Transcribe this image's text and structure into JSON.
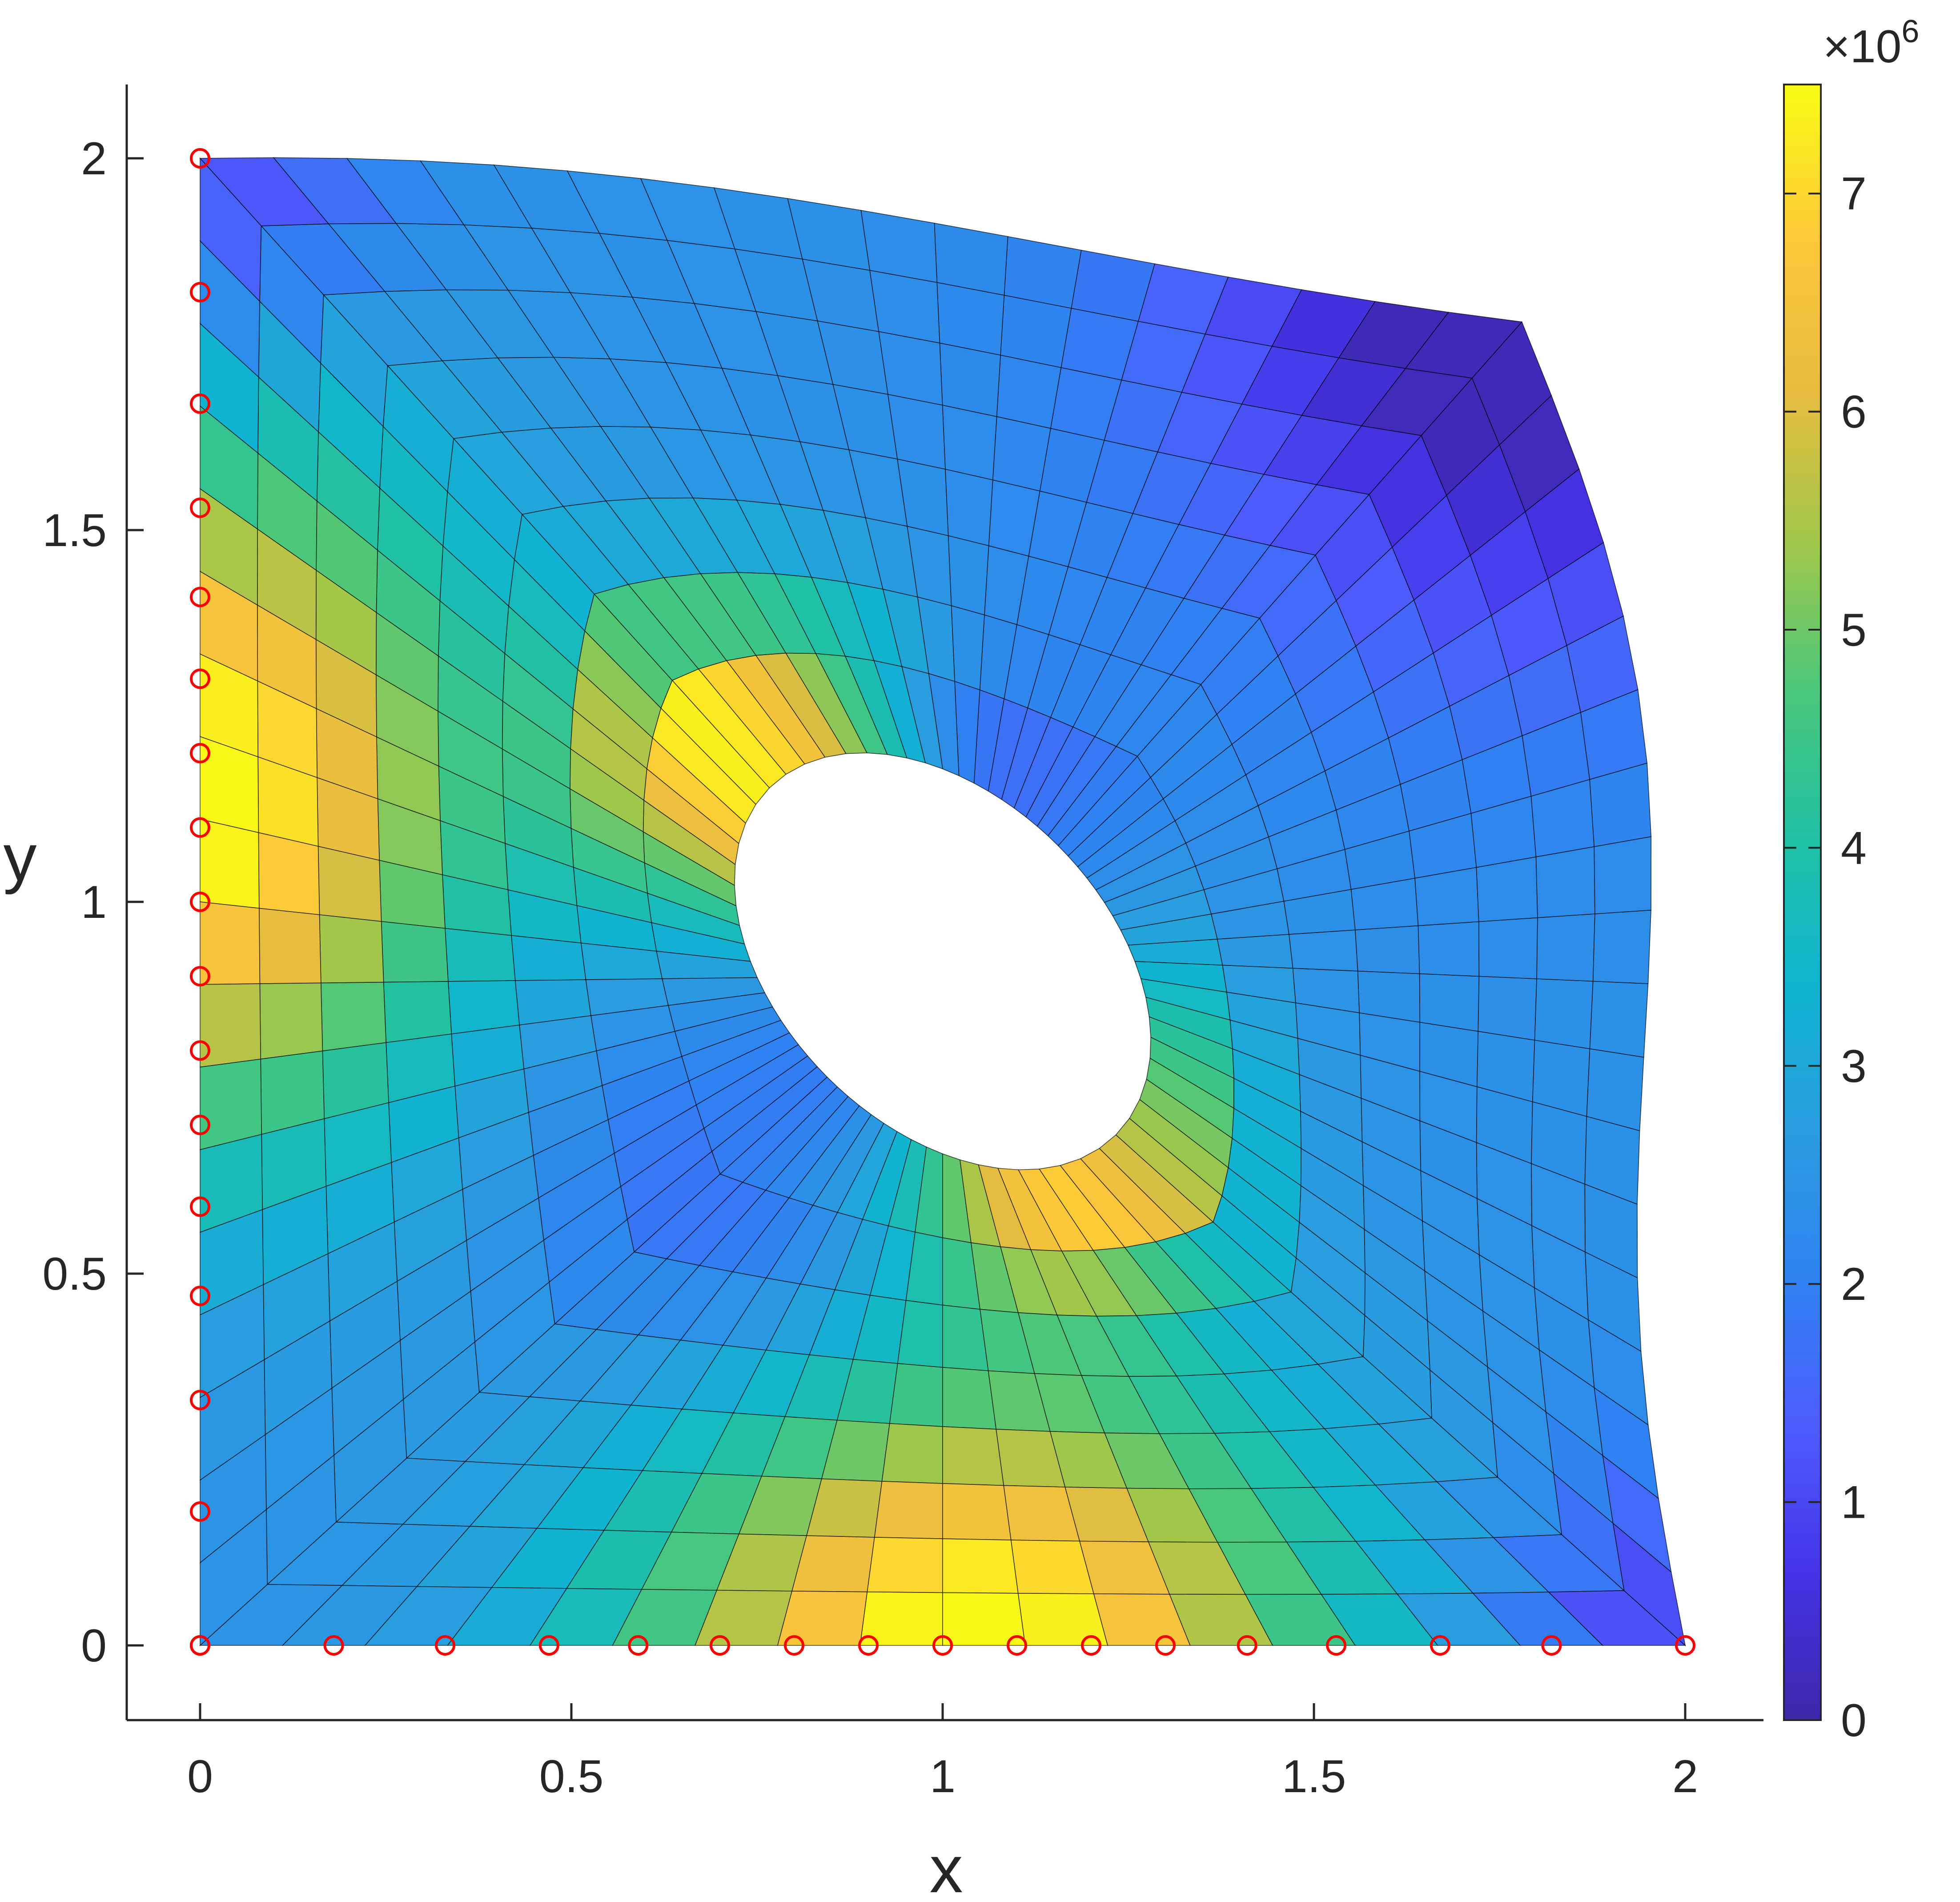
{
  "chart_data": {
    "type": "heatmap",
    "title": "",
    "xlabel": "x",
    "ylabel": "y",
    "xlim": [
      -0.1,
      2.1
    ],
    "ylim": [
      -0.1,
      2.1
    ],
    "xticks": [
      0,
      0.5,
      1,
      1.5,
      2
    ],
    "yticks": [
      0,
      0.5,
      1,
      1.5,
      2
    ],
    "xtick_labels": [
      "0",
      "0.5",
      "1",
      "1.5",
      "2"
    ],
    "ytick_labels": [
      "0",
      "0.5",
      "1",
      "1.5",
      "2"
    ],
    "grid": false,
    "colorbar": {
      "range": [
        0,
        7.5
      ],
      "ticks": [
        0,
        1,
        2,
        3,
        4,
        5,
        6,
        7
      ],
      "tick_labels": [
        "0",
        "1",
        "2",
        "3",
        "4",
        "5",
        "6",
        "7"
      ],
      "exponent_label": "×10",
      "exponent_power": "6",
      "colormap": "parula"
    },
    "mesh": {
      "description_values": "deformed square plate with elliptical hole, filled quad elements colored by stress",
      "outer_corners": [
        [
          0,
          0
        ],
        [
          2,
          0
        ],
        [
          1.78,
          1.78
        ],
        [
          0,
          2
        ]
      ],
      "hole_center": [
        1.0,
        0.92
      ],
      "hole_extremes": {
        "upper_left": [
          0.66,
          1.14
        ],
        "left": [
          0.62,
          0.97
        ],
        "bottom": [
          0.95,
          0.62
        ],
        "right": [
          1.15,
          0.72
        ]
      },
      "radial_divisions": 8,
      "hole_segments": 72,
      "stress_peak_regions": [
        {
          "location": "left edge, y≈1.0-1.4",
          "value": 7.4
        },
        {
          "location": "bottom edge, x≈0.9-1.2",
          "value": 7.4
        },
        {
          "location": "hole upper-left",
          "value": 7.4
        },
        {
          "location": "hole lower-right",
          "value": 7.4
        }
      ],
      "stress_low_regions": [
        {
          "location": "top-right corner",
          "value": 0.2
        },
        {
          "location": "bottom-right corner",
          "value": 0.5
        },
        {
          "location": "top-left corner",
          "value": 0.8
        },
        {
          "location": "hole upper-right",
          "value": 0.4
        }
      ]
    },
    "boundary_markers": {
      "left_edge_y": [
        0,
        0.18,
        0.33,
        0.47,
        0.59,
        0.7,
        0.8,
        0.9,
        1.0,
        1.1,
        1.2,
        1.3,
        1.41,
        1.53,
        1.67,
        1.82,
        2.0
      ],
      "bottom_edge_x": [
        0,
        0.18,
        0.33,
        0.47,
        0.59,
        0.7,
        0.8,
        0.9,
        1.0,
        1.1,
        1.2,
        1.3,
        1.41,
        1.53,
        1.67,
        1.82,
        2.0
      ],
      "color": "#ff0000"
    },
    "colors": {
      "axis": "#262626",
      "mesh_line": "#000000"
    }
  }
}
